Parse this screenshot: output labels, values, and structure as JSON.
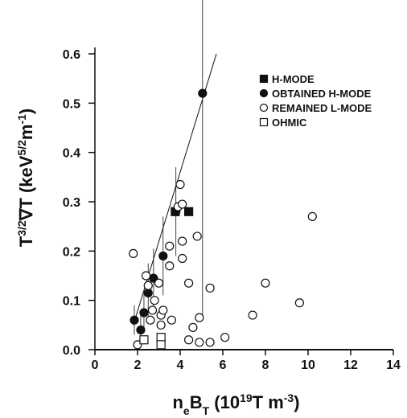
{
  "chart_data": {
    "type": "scatter",
    "xlabel": [
      "n",
      "e",
      "B",
      "T",
      " (10",
      "19",
      "T m",
      "-3",
      ")"
    ],
    "xlabel_style": [
      "base",
      "sub",
      "base",
      "sub",
      "base",
      "sup",
      "base",
      "sup",
      "base"
    ],
    "ylabel": [
      "T",
      "3/2",
      "∇T (keV",
      "5/2",
      "m",
      "-1",
      ")"
    ],
    "ylabel_style": [
      "base",
      "sup",
      "base",
      "sup",
      "base",
      "sup",
      "base"
    ],
    "xlim": [
      0,
      14
    ],
    "ylim": [
      0,
      0.6
    ],
    "xticks": [
      0,
      2,
      4,
      6,
      8,
      10,
      12,
      14
    ],
    "yticks": [
      {
        "value": 0,
        "label": "0.0"
      },
      0.1,
      0.2,
      0.3,
      0.4,
      0.5,
      0.6
    ],
    "legend": "top-right",
    "series": [
      {
        "name": "H-MODE",
        "marker": "square",
        "filled": true,
        "color": "#111111",
        "x": [
          3.77,
          4.4
        ],
        "values": [
          0.28,
          0.28
        ]
      },
      {
        "name": "OBTAINED H-MODE",
        "marker": "circle",
        "filled": true,
        "color": "#111111",
        "x": [
          1.85,
          2.15,
          2.3,
          2.5,
          2.75,
          3.2,
          3.8,
          5.05
        ],
        "values": [
          0.06,
          0.04,
          0.075,
          0.115,
          0.145,
          0.19,
          0.28,
          0.52
        ],
        "yerr": [
          0.03,
          0.03,
          0.04,
          0.06,
          0.06,
          0.08,
          0.09,
          0.45
        ]
      },
      {
        "name": "REMAINED L-MODE",
        "marker": "circle",
        "filled": false,
        "color": "#111111",
        "x": [
          1.8,
          2.0,
          2.4,
          2.5,
          2.6,
          2.8,
          2.7,
          3.0,
          3.1,
          3.2,
          3.1,
          3.5,
          3.5,
          3.6,
          3.9,
          4.0,
          4.1,
          4.1,
          4.1,
          4.4,
          4.4,
          4.6,
          4.8,
          4.9,
          4.9,
          5.4,
          5.4,
          6.1,
          7.4,
          8.0,
          9.6,
          10.2
        ],
        "values": [
          0.195,
          0.01,
          0.15,
          0.13,
          0.06,
          0.1,
          0.08,
          0.135,
          0.07,
          0.08,
          0.05,
          0.17,
          0.21,
          0.06,
          0.29,
          0.335,
          0.295,
          0.22,
          0.185,
          0.135,
          0.02,
          0.045,
          0.23,
          0.065,
          0.015,
          0.015,
          0.125,
          0.025,
          0.07,
          0.135,
          0.095,
          0.27
        ]
      },
      {
        "name": "OHMIC",
        "marker": "square",
        "filled": false,
        "color": "#111111",
        "x": [
          2.3,
          3.1,
          3.1
        ],
        "values": [
          0.02,
          0.025,
          0.01
        ]
      }
    ],
    "fit": {
      "x": [
        1.8,
        5.7
      ],
      "values": [
        0.05,
        0.6
      ]
    }
  }
}
